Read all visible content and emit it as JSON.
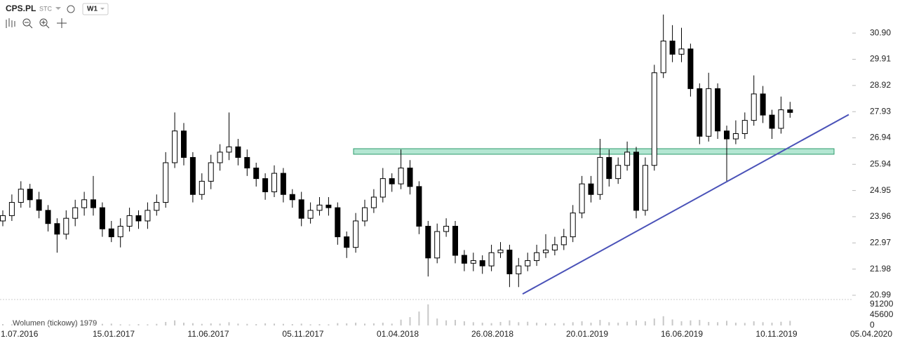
{
  "chart_data": {
    "type": "candlestick",
    "title": "CPS.PL",
    "mode": "STC",
    "timeframe": "W1",
    "volume_label": "Wolumen (tickowy) 1979",
    "xticks": [
      "1.07.2016",
      "15.01.2017",
      "11.06.2017",
      "05.11.2017",
      "01.04.2018",
      "26.08.2018",
      "20.01.2019",
      "16.06.2019",
      "10.11.2019",
      "05.04.2020"
    ],
    "ylim": [
      20.83,
      32.15
    ],
    "yticks": [
      20.99,
      21.98,
      22.97,
      23.96,
      24.95,
      25.94,
      26.94,
      27.93,
      28.92,
      29.91,
      {
        "value": 30.9,
        "label": "30.90"
      }
    ],
    "vlim": [
      0,
      112000
    ],
    "vticks": [
      0,
      45600,
      91200
    ],
    "up_color": "#ffffff",
    "down_color": "#000000",
    "zone": [
      26.32,
      26.53
    ],
    "zone_color": "#b3e6d2",
    "trendline": [
      21.04,
      27.82
    ],
    "trendline_color": "#4a52b8",
    "candles": [
      [
        23.8,
        24.2,
        23.6,
        24.0
      ],
      [
        24.0,
        24.8,
        23.8,
        24.5
      ],
      [
        24.5,
        25.3,
        24.3,
        25.0
      ],
      [
        25.0,
        25.2,
        24.3,
        24.6
      ],
      [
        24.6,
        24.9,
        23.9,
        24.2
      ],
      [
        24.2,
        24.4,
        23.4,
        23.7
      ],
      [
        23.7,
        23.9,
        22.6,
        23.3
      ],
      [
        23.3,
        24.2,
        23.1,
        23.9
      ],
      [
        23.9,
        24.6,
        23.6,
        24.3
      ],
      [
        24.3,
        24.9,
        24.0,
        24.6
      ],
      [
        24.6,
        25.5,
        24.0,
        24.3
      ],
      [
        24.3,
        24.5,
        23.2,
        23.5
      ],
      [
        23.5,
        23.8,
        23.0,
        23.2
      ],
      [
        23.2,
        23.9,
        22.8,
        23.6
      ],
      [
        23.6,
        24.3,
        23.4,
        24.0
      ],
      [
        24.0,
        24.2,
        23.5,
        23.8
      ],
      [
        23.8,
        24.5,
        23.5,
        24.2
      ],
      [
        24.2,
        24.8,
        24.0,
        24.5
      ],
      [
        24.5,
        26.4,
        24.3,
        26.0
      ],
      [
        26.0,
        27.9,
        25.8,
        27.2
      ],
      [
        27.2,
        27.5,
        25.9,
        26.2
      ],
      [
        26.2,
        26.4,
        24.5,
        24.8
      ],
      [
        24.8,
        25.6,
        24.6,
        25.3
      ],
      [
        25.3,
        26.3,
        25.0,
        26.0
      ],
      [
        26.0,
        26.7,
        25.7,
        26.4
      ],
      [
        26.4,
        27.9,
        26.1,
        26.6
      ],
      [
        26.6,
        26.9,
        25.9,
        26.2
      ],
      [
        26.2,
        26.5,
        25.5,
        25.8
      ],
      [
        25.8,
        26.0,
        25.1,
        25.4
      ],
      [
        25.4,
        25.6,
        24.6,
        24.9
      ],
      [
        24.9,
        25.9,
        24.7,
        25.6
      ],
      [
        25.6,
        25.8,
        24.5,
        24.8
      ],
      [
        24.8,
        25.0,
        24.3,
        24.6
      ],
      [
        24.6,
        24.9,
        23.6,
        23.9
      ],
      [
        23.9,
        24.5,
        23.7,
        24.2
      ],
      [
        24.2,
        24.7,
        24.0,
        24.4
      ],
      [
        24.4,
        24.7,
        24.0,
        24.3
      ],
      [
        24.3,
        24.5,
        22.9,
        23.2
      ],
      [
        23.2,
        23.4,
        22.4,
        22.8
      ],
      [
        22.8,
        24.1,
        22.6,
        23.8
      ],
      [
        23.8,
        24.6,
        23.6,
        24.3
      ],
      [
        24.3,
        25.0,
        24.1,
        24.7
      ],
      [
        24.7,
        25.8,
        24.5,
        25.4
      ],
      [
        25.4,
        25.6,
        24.9,
        25.2
      ],
      [
        25.2,
        26.5,
        25.0,
        25.8
      ],
      [
        25.8,
        26.1,
        24.8,
        25.1
      ],
      [
        25.1,
        25.3,
        23.3,
        23.6
      ],
      [
        23.6,
        23.8,
        21.7,
        22.4
      ],
      [
        22.4,
        23.7,
        22.2,
        23.4
      ],
      [
        23.4,
        23.9,
        23.2,
        23.6
      ],
      [
        23.6,
        23.8,
        22.2,
        22.5
      ],
      [
        22.5,
        22.7,
        21.9,
        22.2
      ],
      [
        22.2,
        22.6,
        21.9,
        22.3
      ],
      [
        22.3,
        22.5,
        21.8,
        22.1
      ],
      [
        22.1,
        22.9,
        21.9,
        22.6
      ],
      [
        22.6,
        23.0,
        22.4,
        22.7
      ],
      [
        22.7,
        22.9,
        21.3,
        21.8
      ],
      [
        21.8,
        22.4,
        21.3,
        22.1
      ],
      [
        22.1,
        22.6,
        21.9,
        22.3
      ],
      [
        22.3,
        22.9,
        22.1,
        22.6
      ],
      [
        22.6,
        23.3,
        22.4,
        22.7
      ],
      [
        22.7,
        23.2,
        22.5,
        22.9
      ],
      [
        22.9,
        23.5,
        22.7,
        23.2
      ],
      [
        23.2,
        24.4,
        23.0,
        24.1
      ],
      [
        24.1,
        25.5,
        23.9,
        25.2
      ],
      [
        25.2,
        25.5,
        24.5,
        24.8
      ],
      [
        24.8,
        26.9,
        24.6,
        26.2
      ],
      [
        26.2,
        26.5,
        25.1,
        25.4
      ],
      [
        25.4,
        26.2,
        25.2,
        25.9
      ],
      [
        25.9,
        26.8,
        25.7,
        26.4
      ],
      [
        26.4,
        26.6,
        23.9,
        24.2
      ],
      [
        24.2,
        26.2,
        24.0,
        25.9
      ],
      [
        25.9,
        29.7,
        25.7,
        29.4
      ],
      [
        29.4,
        31.6,
        29.2,
        30.6
      ],
      [
        30.6,
        31.2,
        29.8,
        30.1
      ],
      [
        30.1,
        31.1,
        29.8,
        30.3
      ],
      [
        30.3,
        30.5,
        28.5,
        28.8
      ],
      [
        28.8,
        29.0,
        26.7,
        27.0
      ],
      [
        27.0,
        29.4,
        26.8,
        28.8
      ],
      [
        28.8,
        29.0,
        26.9,
        27.2
      ],
      [
        27.2,
        27.4,
        25.3,
        26.9
      ],
      [
        26.9,
        27.6,
        26.7,
        27.1
      ],
      [
        27.1,
        27.9,
        26.9,
        27.6
      ],
      [
        27.6,
        29.3,
        27.4,
        28.6
      ],
      [
        28.6,
        28.9,
        27.5,
        27.8
      ],
      [
        27.8,
        28.0,
        26.9,
        27.3
      ],
      [
        27.3,
        28.5,
        27.1,
        28.0
      ],
      [
        28.0,
        28.3,
        27.7,
        27.9
      ]
    ],
    "volumes": [
      6000,
      5000,
      7000,
      4000,
      5000,
      6000,
      8000,
      5000,
      4000,
      6000,
      9000,
      7000,
      8000,
      5000,
      4000,
      6000,
      5000,
      7000,
      15000,
      22000,
      12000,
      10000,
      7000,
      9000,
      8000,
      14000,
      8000,
      7000,
      6000,
      9000,
      8000,
      7000,
      6000,
      8000,
      5000,
      6000,
      5000,
      10000,
      9000,
      12000,
      8000,
      9000,
      12000,
      8000,
      25000,
      36000,
      60000,
      91000,
      30000,
      22000,
      24000,
      18000,
      14000,
      12000,
      10000,
      15000,
      22000,
      14000,
      16000,
      12000,
      10000,
      9000,
      10000,
      14000,
      18000,
      12000,
      24000,
      14000,
      12000,
      16000,
      22000,
      18000,
      30000,
      40000,
      26000,
      18000,
      22000,
      24000,
      15000,
      14000,
      20000,
      12000,
      11000,
      18000,
      14000,
      12000,
      16000,
      20000
    ]
  }
}
